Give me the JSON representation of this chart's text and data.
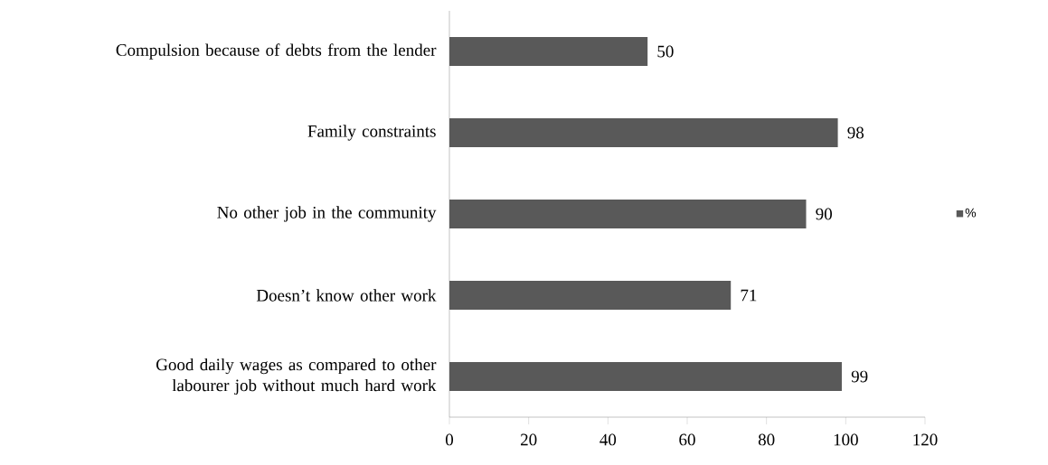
{
  "chart_data": {
    "type": "bar",
    "orientation": "horizontal",
    "categories": [
      "Compulsion because of debts from the lender",
      "Family constraints",
      "No other job in the community",
      "Doesn’t know other work",
      "Good daily wages as compared to other labourer job without much hard work"
    ],
    "series": [
      {
        "name": "%",
        "color": "#595959",
        "values": [
          50,
          98,
          90,
          71,
          99
        ]
      }
    ],
    "xlim": [
      0,
      120
    ],
    "xticks": [
      0,
      20,
      40,
      60,
      80,
      100,
      120
    ],
    "data_labels": true,
    "legend": "right",
    "grid": false
  }
}
